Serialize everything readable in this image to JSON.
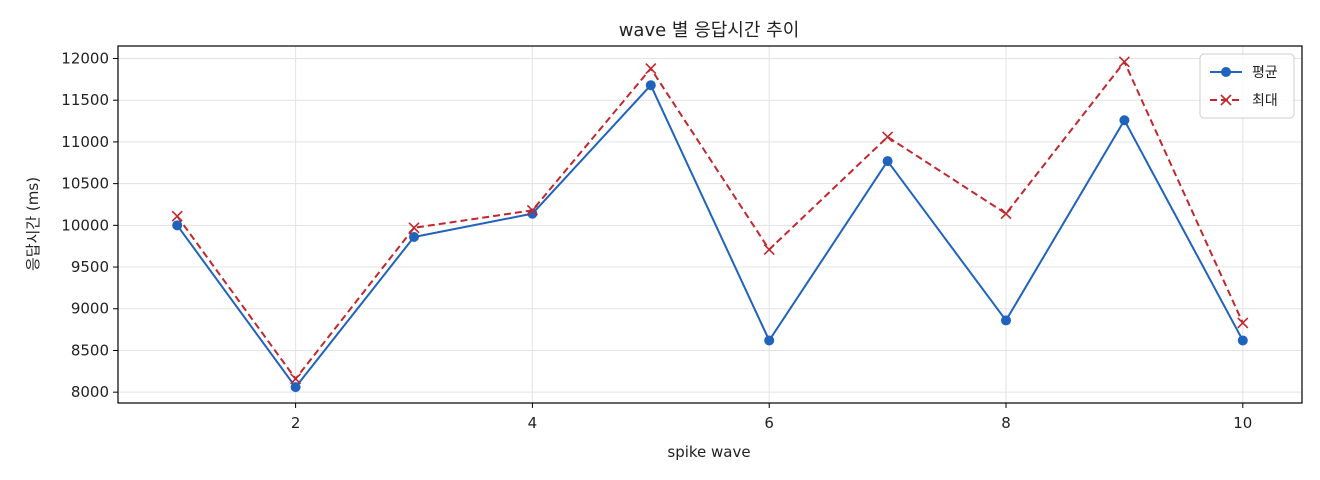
{
  "chart_data": {
    "type": "line",
    "title": "wave 별 응답시간 추이",
    "xlabel": "spike wave",
    "ylabel": "응답시간 (ms)",
    "x": [
      1,
      2,
      3,
      4,
      5,
      6,
      7,
      8,
      9,
      10
    ],
    "xlim": [
      0.5,
      10.5
    ],
    "ylim": [
      7870,
      12150
    ],
    "xticks": [
      2,
      4,
      6,
      8,
      10
    ],
    "yticks": [
      8000,
      8500,
      9000,
      9500,
      10000,
      10500,
      11000,
      11500,
      12000
    ],
    "grid": true,
    "legend_position": "top-right",
    "series": [
      {
        "name": "평균",
        "color": "#1f63bd",
        "line_style": "solid",
        "marker": "circle",
        "values": [
          10000,
          8060,
          9860,
          10140,
          11680,
          8620,
          10770,
          8860,
          11260,
          8620
        ]
      },
      {
        "name": "최대",
        "color": "#c1272d",
        "line_style": "dashed",
        "marker": "x",
        "values": [
          10110,
          8160,
          9970,
          10180,
          11880,
          9710,
          11060,
          10140,
          11960,
          8830
        ]
      }
    ]
  }
}
